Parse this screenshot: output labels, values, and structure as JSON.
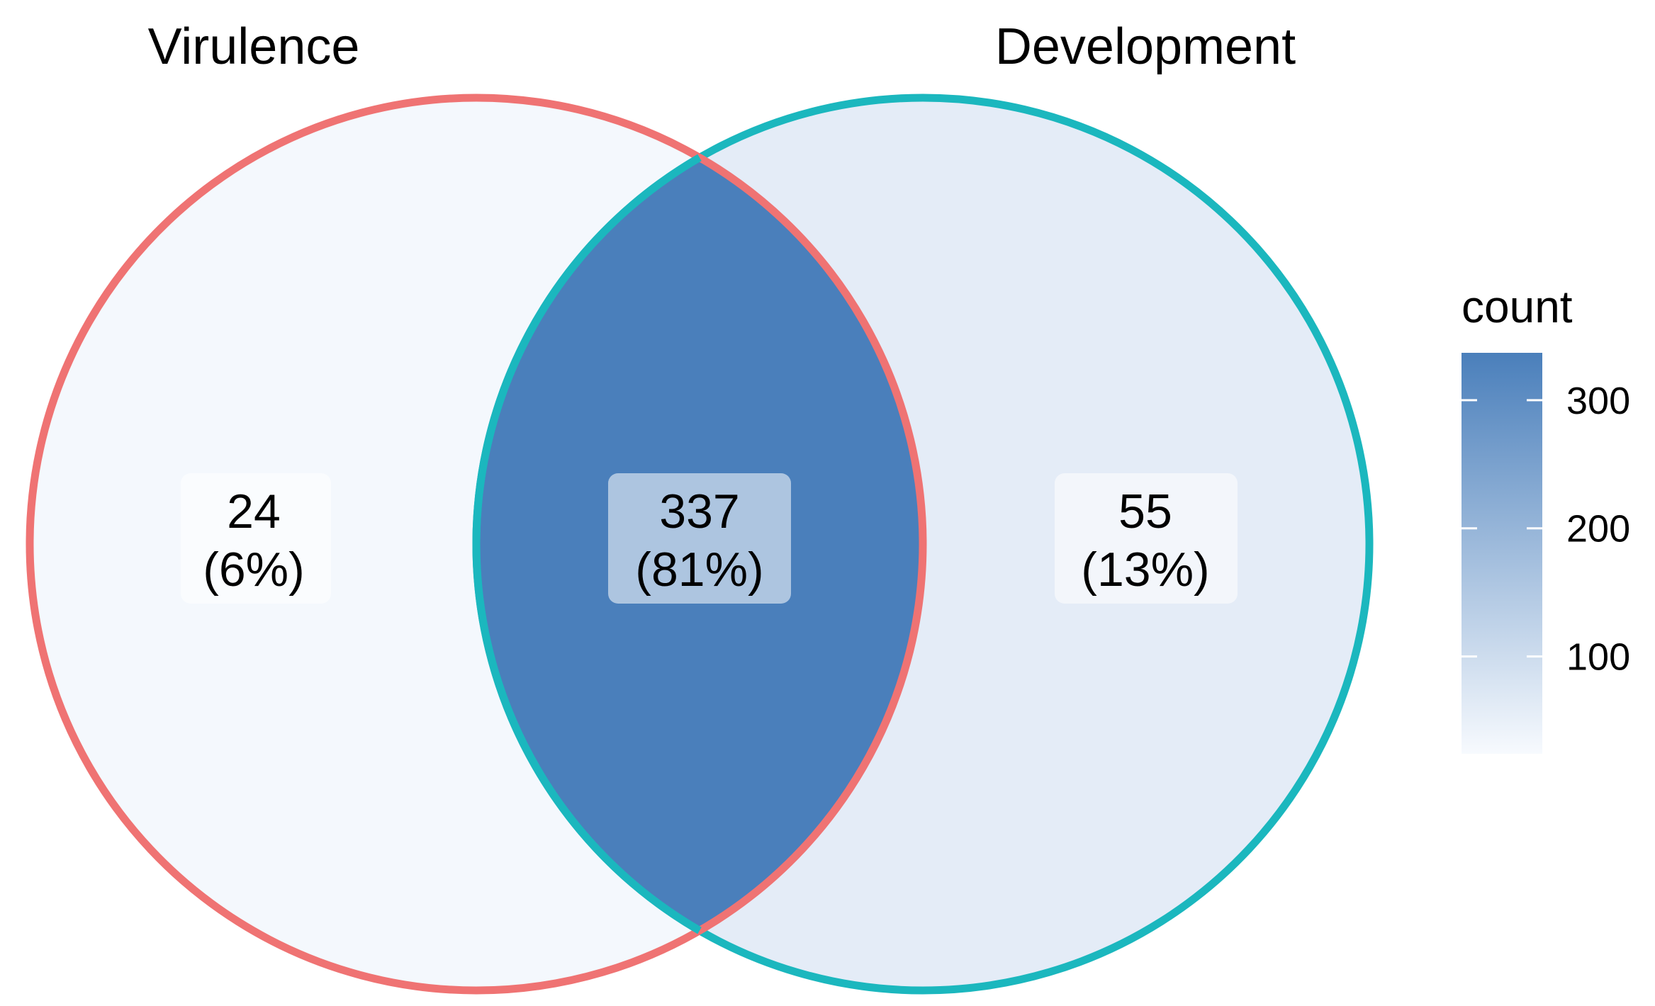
{
  "sets": [
    {
      "name": "Virulence",
      "outline_color": "#EF7373"
    },
    {
      "name": "Development",
      "outline_color": "#1BB7BE"
    }
  ],
  "regions": [
    {
      "id": "virulence_only",
      "count": "24",
      "percent": "(6%)",
      "value": 24,
      "fill": "#F4F8FD"
    },
    {
      "id": "both",
      "count": "337",
      "percent": "(81%)",
      "value": 337,
      "fill": "#4A7FBB"
    },
    {
      "id": "development_only",
      "count": "55",
      "percent": "(13%)",
      "value": 55,
      "fill": "#E4ECF7"
    }
  ],
  "legend": {
    "title": "count",
    "ticks": [
      {
        "label": "300",
        "value": 300
      },
      {
        "label": "200",
        "value": 200
      },
      {
        "label": "100",
        "value": 100
      }
    ],
    "range": [
      24,
      337
    ],
    "low_color": "#F7FAFE",
    "high_color": "#4A7FBB"
  }
}
